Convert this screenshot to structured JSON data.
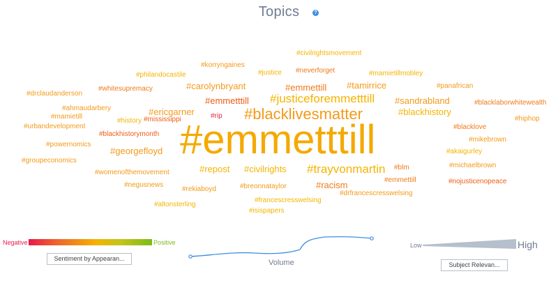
{
  "header": {
    "title": "Topics",
    "help_icon": "?"
  },
  "colors": {
    "dark_orange": "#ee5c15",
    "orange": "#f39a18",
    "amber": "#f4b400",
    "red": "#e32b3c",
    "title": "#6f7c91"
  },
  "topics": [
    {
      "label": "#emmetttill",
      "size": 58,
      "color": "#f4a900"
    },
    {
      "label": "#blacklivesmatter",
      "size": 22,
      "color": "#f39a18"
    },
    {
      "label": "#justiceforemmetttill",
      "size": 17,
      "color": "#f4b400"
    },
    {
      "label": "#trayvonmartin",
      "size": 17,
      "color": "#f4b400"
    },
    {
      "label": "#emmettill",
      "size": 13,
      "color": "#ee7a1a"
    },
    {
      "label": "#tamirrice",
      "size": 13,
      "color": "#f39a18"
    },
    {
      "label": "#carolynbryant",
      "size": 13,
      "color": "#f39a18"
    },
    {
      "label": "#sandrabland",
      "size": 13,
      "color": "#f39a18"
    },
    {
      "label": "#blackhistory",
      "size": 13,
      "color": "#f4b400"
    },
    {
      "label": "#ericgarner",
      "size": 13,
      "color": "#f39a18"
    },
    {
      "label": "#emmetttill",
      "size": 13,
      "color": "#ee5c15"
    },
    {
      "label": "#georgefloyd",
      "size": 13,
      "color": "#f39a18"
    },
    {
      "label": "#repost",
      "size": 13,
      "color": "#f4b400"
    },
    {
      "label": "#civilrights",
      "size": 13,
      "color": "#f4b400"
    },
    {
      "label": "#racism",
      "size": 13,
      "color": "#ee7a1a"
    },
    {
      "label": "#civilrightsmovement",
      "size": 10,
      "color": "#f4b400"
    },
    {
      "label": "#korryngaines",
      "size": 10,
      "color": "#f39a18"
    },
    {
      "label": "#philandocastile",
      "size": 10,
      "color": "#f4b400"
    },
    {
      "label": "#justice",
      "size": 10,
      "color": "#f4b400"
    },
    {
      "label": "#neverforget",
      "size": 10,
      "color": "#ee7a1a"
    },
    {
      "label": "#mamietillmobley",
      "size": 10,
      "color": "#f4b400"
    },
    {
      "label": "#panafrican",
      "size": 10,
      "color": "#f39a18"
    },
    {
      "label": "#whitesupremacy",
      "size": 10,
      "color": "#ee7a1a"
    },
    {
      "label": "#drclaudanderson",
      "size": 10,
      "color": "#f39a18"
    },
    {
      "label": "#blacklaborwhitewealth",
      "size": 10,
      "color": "#ee7a1a"
    },
    {
      "label": "#ahmaudarbery",
      "size": 10,
      "color": "#f39a18"
    },
    {
      "label": "#mississippi",
      "size": 10,
      "color": "#ee5c15"
    },
    {
      "label": "#mamietill",
      "size": 10,
      "color": "#f39a18"
    },
    {
      "label": "#rip",
      "size": 10,
      "color": "#e32b3c"
    },
    {
      "label": "#hiphop",
      "size": 10,
      "color": "#f39a18"
    },
    {
      "label": "#history",
      "size": 10,
      "color": "#f4b400"
    },
    {
      "label": "#urbandevelopment",
      "size": 10,
      "color": "#f39a18"
    },
    {
      "label": "#blacklove",
      "size": 10,
      "color": "#ee7a1a"
    },
    {
      "label": "#blackhistorymonth",
      "size": 10,
      "color": "#ee5c15"
    },
    {
      "label": "#mikebrown",
      "size": 10,
      "color": "#f39a18"
    },
    {
      "label": "#powernomics",
      "size": 10,
      "color": "#f39a18"
    },
    {
      "label": "#akaigurley",
      "size": 10,
      "color": "#f4b400"
    },
    {
      "label": "#groupeconomics",
      "size": 10,
      "color": "#f39a18"
    },
    {
      "label": "#michaelbrown",
      "size": 10,
      "color": "#f39a18"
    },
    {
      "label": "#blm",
      "size": 10,
      "color": "#ee7a1a"
    },
    {
      "label": "#womenofthemovement",
      "size": 10,
      "color": "#f39a18"
    },
    {
      "label": "#emmettill",
      "size": 10,
      "color": "#ee7a1a"
    },
    {
      "label": "#negusnews",
      "size": 10,
      "color": "#f39a18"
    },
    {
      "label": "#nojusticenopeace",
      "size": 10,
      "color": "#ee5c15"
    },
    {
      "label": "#rekiaboyd",
      "size": 10,
      "color": "#f39a18"
    },
    {
      "label": "#breonnataylor",
      "size": 10,
      "color": "#f39a18"
    },
    {
      "label": "#drfrancescresswelsing",
      "size": 10,
      "color": "#f39a18"
    },
    {
      "label": "#altonsterling",
      "size": 10,
      "color": "#f4b400"
    },
    {
      "label": "#francescresswelsing",
      "size": 10,
      "color": "#f4b400"
    },
    {
      "label": "#isispapers",
      "size": 10,
      "color": "#f4b400"
    }
  ],
  "legend": {
    "negative_label": "Negative",
    "positive_label": "Positive",
    "sentiment_button": "Sentiment by Appearan...",
    "volume_label": "Volume",
    "low_label": "Low",
    "high_label": "High",
    "relevance_button": "Subject Relevan..."
  }
}
